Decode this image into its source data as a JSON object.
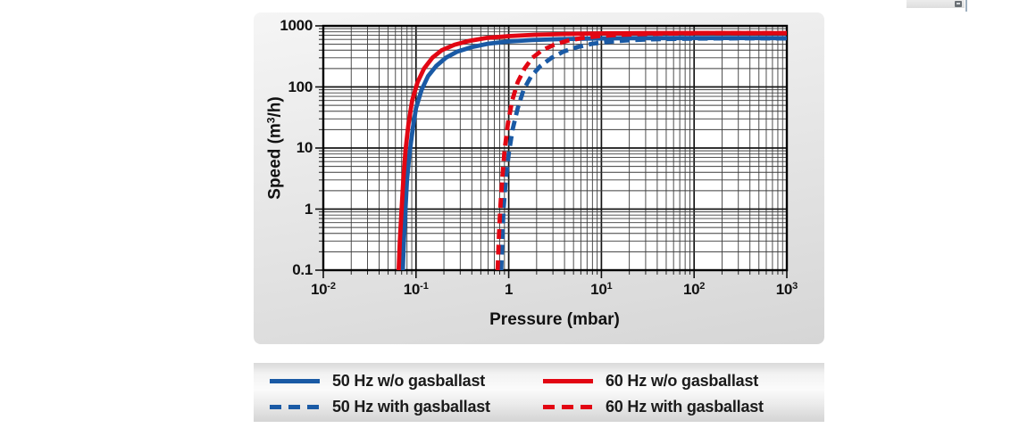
{
  "scrollbar": {
    "icon": "scroll-corner"
  },
  "chart_data": {
    "type": "line",
    "title": "",
    "xlabel": "Pressure (mbar)",
    "ylabel": "Speed (m³/h)",
    "ylabel_parts": {
      "pre": "Speed (m",
      "sup": "3",
      "post": "/h)"
    },
    "x_scale": "log",
    "y_scale": "log",
    "xlim": [
      0.01,
      1000
    ],
    "ylim": [
      0.1,
      1000
    ],
    "grid": "log-minor-and-major",
    "legend_position": "below",
    "x_ticks": [
      {
        "base": "10",
        "exp": "-2"
      },
      {
        "base": "10",
        "exp": "-1"
      },
      {
        "base": "1",
        "exp": ""
      },
      {
        "base": "10",
        "exp": "1"
      },
      {
        "base": "10",
        "exp": "2"
      },
      {
        "base": "10",
        "exp": "3"
      }
    ],
    "y_ticks": [
      "1000",
      "100",
      "10",
      "1",
      "0.1"
    ],
    "series": [
      {
        "name": "50 Hz w/o gasballast",
        "color": "#1a5aa5",
        "style": "solid",
        "points": [
          [
            0.072,
            0.1
          ],
          [
            0.074,
            0.3
          ],
          [
            0.077,
            1
          ],
          [
            0.08,
            3
          ],
          [
            0.085,
            8
          ],
          [
            0.092,
            20
          ],
          [
            0.1,
            45
          ],
          [
            0.115,
            90
          ],
          [
            0.135,
            150
          ],
          [
            0.165,
            220
          ],
          [
            0.21,
            300
          ],
          [
            0.28,
            380
          ],
          [
            0.4,
            450
          ],
          [
            0.6,
            510
          ],
          [
            1,
            555
          ],
          [
            1.8,
            585
          ],
          [
            3.5,
            605
          ],
          [
            8,
            620
          ],
          [
            20,
            628
          ],
          [
            60,
            632
          ],
          [
            200,
            633
          ],
          [
            600,
            630
          ],
          [
            1000,
            628
          ]
        ]
      },
      {
        "name": "60 Hz w/o gasballast",
        "color": "#e20613",
        "style": "solid",
        "points": [
          [
            0.065,
            0.1
          ],
          [
            0.067,
            0.3
          ],
          [
            0.07,
            1
          ],
          [
            0.073,
            3
          ],
          [
            0.077,
            9
          ],
          [
            0.083,
            25
          ],
          [
            0.091,
            60
          ],
          [
            0.104,
            120
          ],
          [
            0.122,
            200
          ],
          [
            0.15,
            300
          ],
          [
            0.19,
            400
          ],
          [
            0.26,
            490
          ],
          [
            0.38,
            570
          ],
          [
            0.58,
            635
          ],
          [
            1,
            680
          ],
          [
            1.9,
            715
          ],
          [
            4,
            737
          ],
          [
            9,
            752
          ],
          [
            25,
            760
          ],
          [
            80,
            764
          ],
          [
            250,
            765
          ],
          [
            700,
            762
          ],
          [
            1000,
            760
          ]
        ]
      },
      {
        "name": "50 Hz with gasballast",
        "color": "#1a5aa5",
        "style": "dashed",
        "points": [
          [
            0.83,
            0.1
          ],
          [
            0.85,
            0.3
          ],
          [
            0.88,
            1
          ],
          [
            0.93,
            3
          ],
          [
            1.0,
            8
          ],
          [
            1.1,
            20
          ],
          [
            1.25,
            45
          ],
          [
            1.45,
            90
          ],
          [
            1.75,
            150
          ],
          [
            2.2,
            220
          ],
          [
            2.9,
            300
          ],
          [
            3.9,
            380
          ],
          [
            5.5,
            450
          ],
          [
            8,
            510
          ],
          [
            12.5,
            552
          ],
          [
            20,
            582
          ],
          [
            35,
            602
          ],
          [
            70,
            615
          ],
          [
            160,
            622
          ],
          [
            420,
            624
          ],
          [
            1000,
            622
          ]
        ]
      },
      {
        "name": "60 Hz with gasballast",
        "color": "#e20613",
        "style": "dashed",
        "points": [
          [
            0.76,
            0.1
          ],
          [
            0.78,
            0.3
          ],
          [
            0.81,
            1
          ],
          [
            0.85,
            3
          ],
          [
            0.9,
            9
          ],
          [
            0.98,
            25
          ],
          [
            1.09,
            60
          ],
          [
            1.25,
            120
          ],
          [
            1.48,
            200
          ],
          [
            1.8,
            300
          ],
          [
            2.3,
            400
          ],
          [
            3.1,
            490
          ],
          [
            4.3,
            570
          ],
          [
            6.3,
            635
          ],
          [
            9.5,
            680
          ],
          [
            15,
            712
          ],
          [
            26,
            734
          ],
          [
            55,
            750
          ],
          [
            150,
            758
          ],
          [
            450,
            760
          ],
          [
            1000,
            758
          ]
        ]
      }
    ]
  },
  "legend": {
    "items": [
      {
        "label": "50 Hz w/o gasballast",
        "color": "#1a5aa5",
        "style": "solid"
      },
      {
        "label": "50 Hz with gasballast",
        "color": "#1a5aa5",
        "style": "dashed"
      },
      {
        "label": "60 Hz w/o gasballast",
        "color": "#e20613",
        "style": "solid"
      },
      {
        "label": "60 Hz with gasballast",
        "color": "#e20613",
        "style": "dashed"
      }
    ]
  }
}
